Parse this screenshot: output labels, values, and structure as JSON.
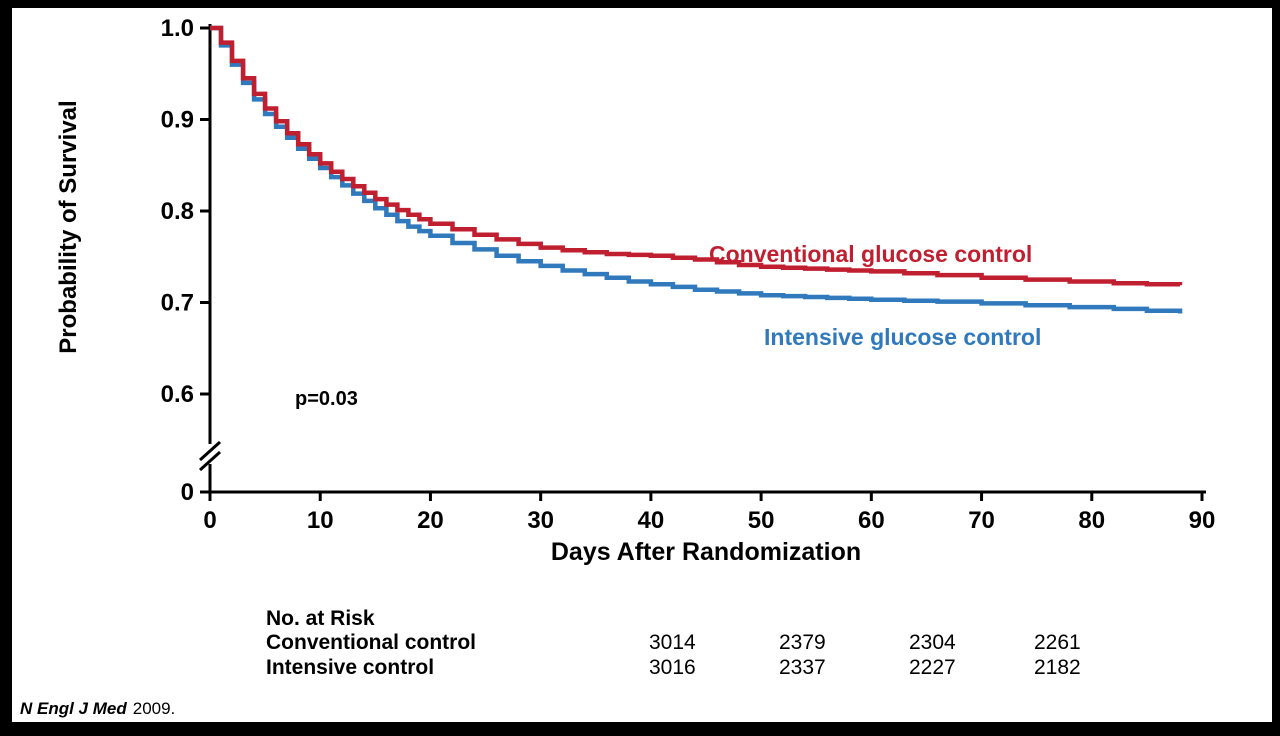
{
  "chart_data": {
    "type": "line",
    "subtype": "kaplan-meier-step",
    "title": "",
    "xlabel": "Days After Randomization",
    "ylabel": "Probability of Survival",
    "xlim": [
      0,
      90
    ],
    "xticks": [
      0,
      10,
      20,
      30,
      40,
      50,
      60,
      70,
      80,
      90
    ],
    "yticks": [
      0,
      0.6,
      0.7,
      0.8,
      0.9,
      1.0
    ],
    "ytick_labels": [
      "0",
      "0.6",
      "0.7",
      "0.8",
      "0.9",
      "1.0"
    ],
    "axis_break_between": [
      0,
      0.6
    ],
    "grid": false,
    "legend_position": "inline-labels",
    "annotation": {
      "text": "p=0.03"
    },
    "series": [
      {
        "name": "Conventional glucose control",
        "color": "#C01F30",
        "x": [
          0,
          1,
          2,
          3,
          4,
          5,
          6,
          7,
          8,
          9,
          10,
          11,
          12,
          13,
          14,
          15,
          16,
          17,
          18,
          19,
          20,
          22,
          24,
          26,
          28,
          30,
          32,
          34,
          36,
          38,
          40,
          42,
          44,
          46,
          48,
          50,
          52,
          54,
          56,
          58,
          60,
          63,
          66,
          70,
          74,
          78,
          82,
          85,
          88
        ],
        "y": [
          1.0,
          0.984,
          0.964,
          0.945,
          0.928,
          0.912,
          0.898,
          0.885,
          0.873,
          0.862,
          0.852,
          0.843,
          0.835,
          0.827,
          0.82,
          0.813,
          0.807,
          0.801,
          0.796,
          0.791,
          0.786,
          0.78,
          0.774,
          0.769,
          0.764,
          0.76,
          0.757,
          0.755,
          0.753,
          0.752,
          0.751,
          0.749,
          0.747,
          0.744,
          0.741,
          0.739,
          0.738,
          0.737,
          0.736,
          0.735,
          0.734,
          0.732,
          0.73,
          0.727,
          0.725,
          0.723,
          0.721,
          0.72,
          0.719
        ]
      },
      {
        "name": "Intensive glucose control",
        "color": "#2F79BC",
        "x": [
          0,
          1,
          2,
          3,
          4,
          5,
          6,
          7,
          8,
          9,
          10,
          11,
          12,
          13,
          14,
          15,
          16,
          17,
          18,
          19,
          20,
          22,
          24,
          26,
          28,
          30,
          32,
          34,
          36,
          38,
          40,
          42,
          44,
          46,
          48,
          50,
          52,
          54,
          56,
          58,
          60,
          63,
          66,
          70,
          74,
          78,
          82,
          85,
          88
        ],
        "y": [
          1.0,
          0.981,
          0.96,
          0.94,
          0.922,
          0.906,
          0.892,
          0.88,
          0.868,
          0.857,
          0.847,
          0.837,
          0.828,
          0.819,
          0.811,
          0.803,
          0.796,
          0.789,
          0.783,
          0.778,
          0.773,
          0.765,
          0.758,
          0.751,
          0.745,
          0.74,
          0.735,
          0.731,
          0.727,
          0.723,
          0.72,
          0.717,
          0.714,
          0.712,
          0.71,
          0.708,
          0.707,
          0.706,
          0.705,
          0.704,
          0.703,
          0.702,
          0.701,
          0.699,
          0.697,
          0.695,
          0.693,
          0.691,
          0.688
        ]
      }
    ]
  },
  "risk_table": {
    "header": "No. at Risk",
    "rows": [
      {
        "label": "Conventional control",
        "values": [
          "3014",
          "2379",
          "2304",
          "2261"
        ]
      },
      {
        "label": "Intensive control",
        "values": [
          "3016",
          "2337",
          "2227",
          "2182"
        ]
      }
    ]
  },
  "footer": {
    "citation_italic": "N Engl J Med",
    "citation_year": "2009."
  }
}
